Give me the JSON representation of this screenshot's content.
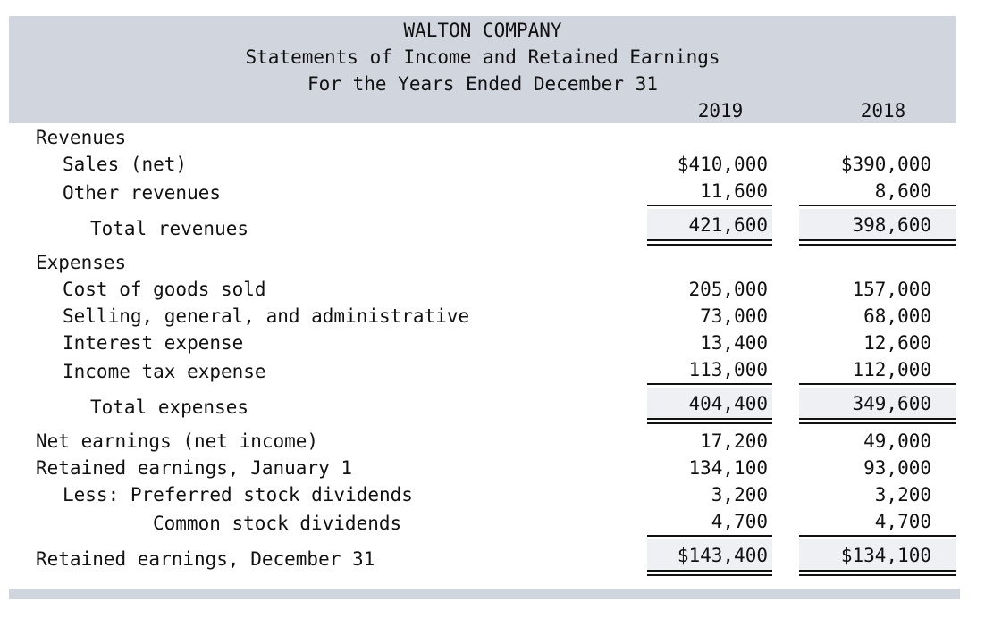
{
  "statement": {
    "company": "WALTON COMPANY",
    "title": "Statements of Income and Retained Earnings",
    "period": "For the Years Ended December 31",
    "years": [
      "2019",
      "2018"
    ]
  },
  "rows": {
    "revenues_heading": "Revenues",
    "sales": {
      "label": "Sales (net)",
      "y2019": "$410,000",
      "y2018": "$390,000"
    },
    "other_revenues": {
      "label": "Other revenues",
      "y2019": "11,600",
      "y2018": "8,600"
    },
    "total_revenues": {
      "label": "Total revenues",
      "y2019": "421,600",
      "y2018": "398,600"
    },
    "expenses_heading": "Expenses",
    "cogs": {
      "label": "Cost of goods sold",
      "y2019": "205,000",
      "y2018": "157,000"
    },
    "sga": {
      "label": "Selling, general, and administrative",
      "y2019": "73,000",
      "y2018": "68,000"
    },
    "interest": {
      "label": "Interest expense",
      "y2019": "13,400",
      "y2018": "12,600"
    },
    "income_tax": {
      "label": "Income tax expense",
      "y2019": "113,000",
      "y2018": "112,000"
    },
    "total_expenses": {
      "label": "Total expenses",
      "y2019": "404,400",
      "y2018": "349,600"
    },
    "net_earnings": {
      "label": "Net earnings (net income)",
      "y2019": "17,200",
      "y2018": "49,000"
    },
    "re_jan1": {
      "label": "Retained earnings, January 1",
      "y2019": "134,100",
      "y2018": "93,000"
    },
    "pref_div": {
      "label": "Less: Preferred stock dividends",
      "y2019": "3,200",
      "y2018": "3,200"
    },
    "common_div": {
      "label": "Common stock dividends",
      "y2019": "4,700",
      "y2018": "4,700"
    },
    "re_dec31": {
      "label": "Retained earnings, December 31",
      "y2019": "$143,400",
      "y2018": "$134,100"
    }
  }
}
